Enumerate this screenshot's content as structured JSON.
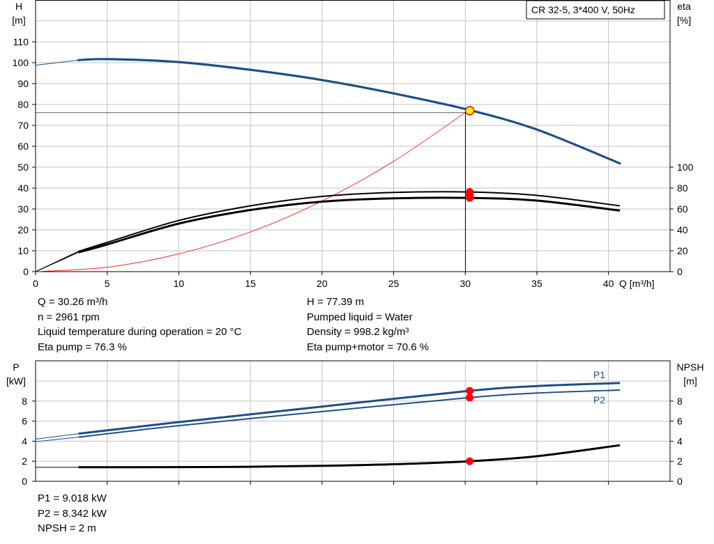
{
  "top_chart": {
    "y_left_label": [
      "H",
      "[m]"
    ],
    "y_right_label": [
      "eta",
      "[%]"
    ],
    "x_label": "Q [m³/h]",
    "legend": "CR 32-5, 3*400 V, 50Hz",
    "x_ticks": [
      "0",
      "5",
      "10",
      "15",
      "20",
      "25",
      "30",
      "35",
      "40"
    ],
    "y_left_ticks": [
      "0",
      "10",
      "20",
      "30",
      "40",
      "50",
      "60",
      "70",
      "80",
      "90",
      "100",
      "110"
    ],
    "y_right_ticks": [
      "0",
      "20",
      "40",
      "60",
      "80",
      "100"
    ]
  },
  "bottom_chart": {
    "y_left_label": [
      "P",
      "[kW]"
    ],
    "y_right_label": [
      "NPSH",
      "[m]"
    ],
    "x_ticks_shared": true,
    "y_left_ticks": [
      "0",
      "2",
      "4",
      "6",
      "8"
    ],
    "y_right_ticks": [
      "0",
      "2",
      "4",
      "6",
      "8"
    ],
    "p1_label": "P1",
    "p2_label": "P2"
  },
  "info": {
    "col1": [
      "Q = 30.26 m³/h",
      "n = 2961 rpm",
      "Liquid temperature during operation = 20 °C",
      "Eta pump = 76.3 %"
    ],
    "col2": [
      "H = 77.39 m",
      "Pumped liquid = Water",
      "Density = 998.2 kg/m³",
      "Eta pump+motor = 70.6 %"
    ],
    "col3": [
      "P1 = 9.018 kW",
      "P2 = 8.342 kW",
      "NPSH = 2 m"
    ]
  },
  "colors": {
    "head": "#1c4f86",
    "power": "#1c4f86",
    "eta": "#000000",
    "npsh": "#000000",
    "operating_point": "#ff0000",
    "duty_marker": "#ffff00",
    "system_curve": "#ff0000",
    "grid": "#c0c0c0"
  },
  "chart_data": [
    {
      "type": "line",
      "title": "",
      "legend": "CR 32-5, 3*400 V, 50Hz",
      "xlabel": "Q [m³/h]",
      "ylabel": "H [m]",
      "y2label": "eta [%]",
      "xlim": [
        0,
        44.3
      ],
      "ylim": [
        0,
        110
      ],
      "y2lim": [
        0,
        100
      ],
      "series": [
        {
          "name": "H",
          "axis": "left",
          "x": [
            0,
            3,
            5,
            10,
            15,
            20,
            25,
            30.26,
            35,
            40.8
          ],
          "y": [
            98.8,
            101.2,
            101.7,
            100.3,
            96.6,
            91.7,
            85.3,
            77.39,
            68.0,
            51.8
          ]
        },
        {
          "name": "eta pump",
          "axis": "right",
          "x": [
            3,
            5,
            10,
            15,
            20,
            25,
            30.26,
            35,
            40.8
          ],
          "y": [
            19.5,
            28,
            49,
            63,
            72,
            75.8,
            76.3,
            73,
            63
          ]
        },
        {
          "name": "eta pump+motor",
          "axis": "right",
          "x": [
            3,
            5,
            10,
            15,
            20,
            25,
            30.26,
            35,
            40.8
          ],
          "y": [
            18.5,
            26,
            46,
            59,
            67,
            70.2,
            70.6,
            68,
            58.5
          ]
        },
        {
          "name": "system curve",
          "axis": "left",
          "x": [
            0,
            5,
            10,
            15,
            20,
            25,
            30.26
          ],
          "y": [
            0,
            2.1,
            8.5,
            19.0,
            33.8,
            52.8,
            77.39
          ]
        }
      ],
      "operating_point": {
        "Q": 30.26,
        "H": 77.39,
        "eta_pump": 76.3,
        "eta_pump_motor": 70.6,
        "eta_third": 73.5
      }
    },
    {
      "type": "line",
      "title": "",
      "xlabel": "Q [m³/h]",
      "ylabel": "P [kW]",
      "y2label": "NPSH [m]",
      "xlim": [
        0,
        44.3
      ],
      "ylim": [
        0,
        10
      ],
      "y2lim": [
        0,
        10
      ],
      "series": [
        {
          "name": "P1",
          "axis": "left",
          "x": [
            0,
            3,
            10,
            20,
            30.26,
            35,
            40.8
          ],
          "y": [
            4.2,
            4.75,
            5.9,
            7.45,
            9.018,
            9.5,
            9.8
          ]
        },
        {
          "name": "P2",
          "axis": "left",
          "x": [
            0,
            3,
            10,
            20,
            30.26,
            35,
            40.8
          ],
          "y": [
            3.95,
            4.4,
            5.55,
            6.95,
            8.342,
            8.8,
            9.1
          ]
        },
        {
          "name": "NPSH",
          "axis": "right",
          "x": [
            0,
            3,
            10,
            15,
            20,
            25,
            30.26,
            35,
            40.8
          ],
          "y": [
            1.4,
            1.4,
            1.42,
            1.45,
            1.55,
            1.7,
            2.0,
            2.5,
            3.6
          ]
        }
      ],
      "operating_point": {
        "Q": 30.26,
        "P1": 9.018,
        "P2": 8.342,
        "NPSH": 2
      }
    }
  ]
}
